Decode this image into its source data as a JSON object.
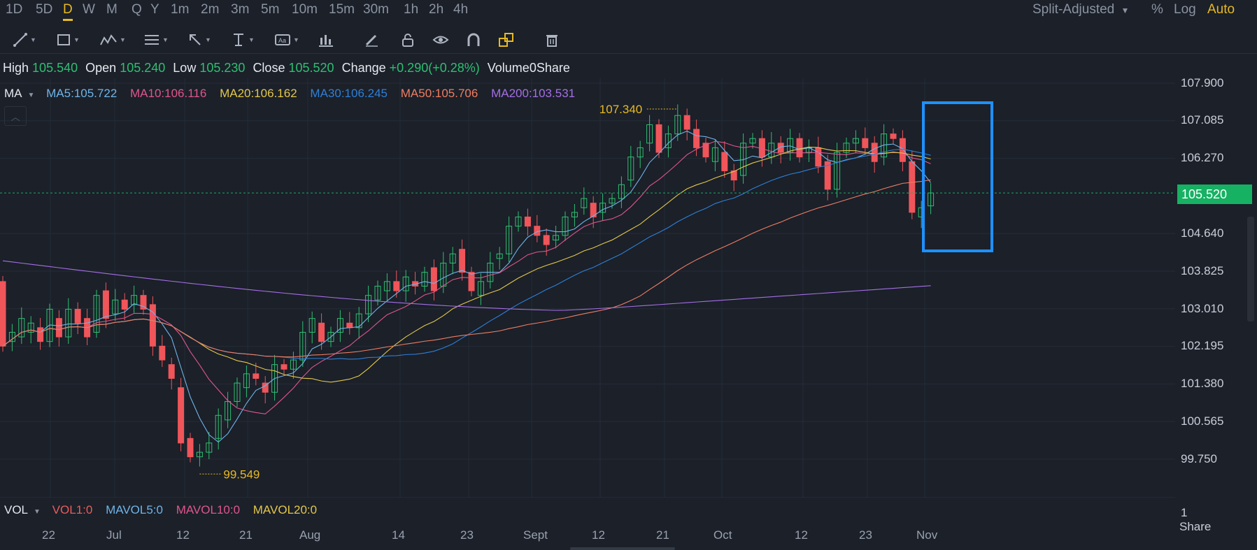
{
  "timeframes": [
    "1D",
    "5D",
    "D",
    "W",
    "M",
    "Q",
    "Y",
    "1m",
    "2m",
    "3m",
    "5m",
    "10m",
    "15m",
    "30m",
    "1h",
    "2h",
    "4h"
  ],
  "active_timeframe": "D",
  "adjust_mode": "Split-Adjusted",
  "scale_options": [
    "%",
    "Log",
    "Auto"
  ],
  "active_scale": "Auto",
  "toolbar_icons": [
    "line-tool-icon",
    "rectangle-tool-icon",
    "pattern-tool-icon",
    "fib-tool-icon",
    "arrow-tool-icon",
    "measure-tool-icon",
    "text-tool-icon",
    "indicator-icon",
    "pencil-icon",
    "lock-icon",
    "eye-icon",
    "magnet-icon",
    "link-icon",
    "trash-icon"
  ],
  "ohlc": {
    "high_label": "High",
    "high": "105.540",
    "open_label": "Open",
    "open": "105.240",
    "low_label": "Low",
    "low": "105.230",
    "close_label": "Close",
    "close": "105.520",
    "change_label": "Change",
    "change": "+0.290(+0.28%)",
    "volume_label": "Volume",
    "volume": "0Share"
  },
  "ma_legend": {
    "title": "MA",
    "items": [
      {
        "text": "MA5:105.722",
        "color": "#6fb4e8"
      },
      {
        "text": "MA10:106.116",
        "color": "#e0558c"
      },
      {
        "text": "MA20:106.162",
        "color": "#e3c74a"
      },
      {
        "text": "MA30:106.245",
        "color": "#2f7fd6"
      },
      {
        "text": "MA50:105.706",
        "color": "#ee7d62"
      },
      {
        "text": "MA200:103.531",
        "color": "#a66ee6"
      }
    ]
  },
  "price_ticks": [
    "107.900",
    "107.085",
    "106.270",
    "104.640",
    "103.825",
    "103.010",
    "102.195",
    "101.380",
    "100.565",
    "99.750"
  ],
  "last_price": "105.520",
  "high_marker": "107.340",
  "low_marker": "99.549",
  "vol_legend": {
    "title": "VOL",
    "items": [
      {
        "text": "VOL1:0",
        "color": "#e85d5d"
      },
      {
        "text": "MAVOL5:0",
        "color": "#6fb4e8"
      },
      {
        "text": "MAVOL10:0",
        "color": "#e0558c"
      },
      {
        "text": "MAVOL20:0",
        "color": "#e3c74a"
      }
    ],
    "axis_value": "1",
    "axis_unit": "Share"
  },
  "x_ticks": [
    "22",
    "Jul",
    "12",
    "21",
    "Aug",
    "14",
    "23",
    "Sept",
    "12",
    "21",
    "Oct",
    "12",
    "23",
    "Nov"
  ],
  "colors": {
    "up": "#2fbf71",
    "down": "#f0555a",
    "highlight": "#1e90ff",
    "bg": "#1b2029"
  },
  "chart_data": {
    "type": "candlestick",
    "ylim": [
      99.3,
      108.1
    ],
    "ma_lines": [
      "MA5",
      "MA10",
      "MA20",
      "MA30",
      "MA50",
      "MA200"
    ],
    "candles": [
      [
        103.6,
        102.2
      ],
      [
        102.3,
        102.5
      ],
      [
        102.4,
        102.8
      ],
      [
        102.5,
        102.7
      ],
      [
        102.6,
        102.3
      ],
      [
        102.3,
        103.0
      ],
      [
        102.8,
        102.4
      ],
      [
        102.4,
        103.0
      ],
      [
        103.0,
        102.7
      ],
      [
        102.8,
        102.4
      ],
      [
        102.5,
        103.3
      ],
      [
        103.4,
        102.8
      ],
      [
        102.9,
        103.2
      ],
      [
        103.2,
        103.0
      ],
      [
        103.1,
        103.3
      ],
      [
        103.3,
        103.0
      ],
      [
        103.1,
        102.2
      ],
      [
        102.2,
        101.9
      ],
      [
        101.8,
        101.5
      ],
      [
        101.3,
        100.1
      ],
      [
        100.2,
        99.8
      ],
      [
        99.8,
        99.9
      ],
      [
        99.9,
        100.1
      ],
      [
        100.2,
        100.7
      ],
      [
        100.6,
        101.0
      ],
      [
        101.0,
        101.4
      ],
      [
        101.3,
        101.6
      ],
      [
        101.6,
        101.5
      ],
      [
        101.4,
        101.2
      ],
      [
        101.2,
        101.8
      ],
      [
        101.8,
        101.7
      ],
      [
        101.7,
        101.9
      ],
      [
        101.9,
        102.5
      ],
      [
        102.5,
        102.8
      ],
      [
        102.7,
        102.3
      ],
      [
        102.3,
        102.5
      ],
      [
        102.5,
        102.8
      ],
      [
        102.7,
        102.6
      ],
      [
        102.6,
        102.9
      ],
      [
        102.9,
        103.3
      ],
      [
        103.2,
        103.5
      ],
      [
        103.4,
        103.6
      ],
      [
        103.6,
        103.4
      ],
      [
        103.4,
        103.7
      ],
      [
        103.6,
        103.5
      ],
      [
        103.5,
        103.8
      ],
      [
        103.9,
        103.4
      ],
      [
        103.5,
        104.0
      ],
      [
        104.0,
        104.2
      ],
      [
        104.3,
        103.8
      ],
      [
        103.8,
        103.4
      ],
      [
        103.3,
        103.6
      ],
      [
        103.6,
        104.0
      ],
      [
        104.1,
        104.2
      ],
      [
        104.2,
        104.8
      ],
      [
        104.8,
        105.0
      ],
      [
        105.0,
        104.8
      ],
      [
        104.8,
        104.6
      ],
      [
        104.6,
        104.4
      ],
      [
        104.5,
        104.6
      ],
      [
        104.6,
        105.0
      ],
      [
        105.0,
        105.1
      ],
      [
        105.2,
        105.4
      ],
      [
        105.3,
        105.0
      ],
      [
        105.1,
        105.3
      ],
      [
        105.3,
        105.4
      ],
      [
        105.4,
        105.7
      ],
      [
        105.8,
        106.3
      ],
      [
        106.3,
        106.5
      ],
      [
        106.6,
        107.0
      ],
      [
        107.0,
        106.4
      ],
      [
        106.5,
        106.8
      ],
      [
        106.8,
        107.2
      ],
      [
        107.2,
        106.9
      ],
      [
        106.9,
        106.5
      ],
      [
        106.6,
        106.3
      ],
      [
        106.2,
        106.5
      ],
      [
        106.4,
        106.0
      ],
      [
        106.0,
        105.8
      ],
      [
        105.9,
        106.6
      ],
      [
        106.6,
        106.7
      ],
      [
        106.7,
        106.3
      ],
      [
        106.3,
        106.6
      ],
      [
        106.6,
        106.4
      ],
      [
        106.4,
        106.7
      ],
      [
        106.7,
        106.3
      ],
      [
        106.4,
        106.5
      ],
      [
        106.5,
        106.1
      ],
      [
        106.2,
        105.6
      ],
      [
        105.6,
        106.4
      ],
      [
        106.4,
        106.6
      ],
      [
        106.6,
        106.7
      ],
      [
        106.7,
        106.5
      ],
      [
        106.6,
        106.2
      ],
      [
        106.3,
        106.8
      ],
      [
        106.8,
        106.7
      ],
      [
        106.7,
        106.2
      ],
      [
        106.2,
        105.1
      ],
      [
        105.0,
        105.2
      ],
      [
        105.24,
        105.52
      ]
    ]
  }
}
